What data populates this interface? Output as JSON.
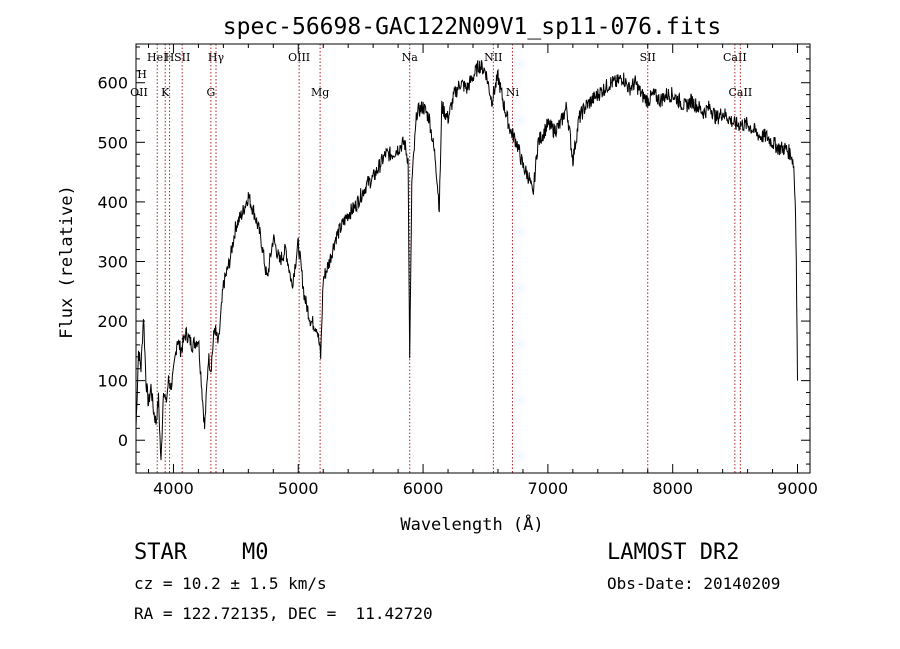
{
  "chart_data": {
    "type": "line",
    "title": "spec-56698-GAC122N09V1_sp11-076.fits",
    "xlabel": "Wavelength (Å)",
    "ylabel": "Flux (relative)",
    "xlim": [
      3700,
      9100
    ],
    "ylim": [
      -55,
      665
    ],
    "xticks": [
      4000,
      5000,
      6000,
      7000,
      8000,
      9000
    ],
    "yticks": [
      0,
      100,
      200,
      300,
      400,
      500,
      600
    ],
    "series": [
      {
        "color": "#000000",
        "x": [
          3700,
          3720,
          3740,
          3760,
          3780,
          3800,
          3820,
          3840,
          3860,
          3880,
          3900,
          3920,
          3940,
          3960,
          3980,
          4000,
          4030,
          4060,
          4100,
          4150,
          4200,
          4250,
          4280,
          4300,
          4330,
          4360,
          4400,
          4450,
          4500,
          4550,
          4600,
          4650,
          4700,
          4750,
          4800,
          4850,
          4900,
          4950,
          5000,
          5050,
          5100,
          5150,
          5180,
          5200,
          5250,
          5300,
          5350,
          5400,
          5450,
          5500,
          5550,
          5600,
          5650,
          5700,
          5750,
          5800,
          5850,
          5880,
          5893,
          5910,
          5950,
          6000,
          6050,
          6100,
          6130,
          6150,
          6200,
          6250,
          6300,
          6350,
          6400,
          6450,
          6500,
          6550,
          6600,
          6650,
          6700,
          6750,
          6800,
          6850,
          6880,
          6920,
          6950,
          7000,
          7050,
          7100,
          7150,
          7200,
          7250,
          7300,
          7350,
          7400,
          7450,
          7500,
          7550,
          7600,
          7650,
          7700,
          7750,
          7800,
          7850,
          7900,
          7950,
          8000,
          8050,
          8100,
          8150,
          8200,
          8250,
          8300,
          8350,
          8400,
          8450,
          8500,
          8550,
          8600,
          8650,
          8700,
          8750,
          8800,
          8850,
          8900,
          8950,
          8970,
          8985,
          8990,
          9000
        ],
        "y": [
          20,
          150,
          120,
          210,
          100,
          60,
          90,
          50,
          30,
          70,
          -40,
          90,
          60,
          100,
          90,
          110,
          170,
          150,
          180,
          160,
          170,
          20,
          140,
          120,
          190,
          160,
          260,
          300,
          360,
          380,
          410,
          380,
          340,
          270,
          340,
          300,
          320,
          260,
          330,
          240,
          200,
          190,
          140,
          270,
          300,
          340,
          360,
          380,
          390,
          410,
          430,
          440,
          460,
          480,
          480,
          490,
          500,
          470,
          130,
          430,
          550,
          560,
          540,
          470,
          390,
          560,
          540,
          580,
          600,
          590,
          610,
          630,
          620,
          570,
          610,
          560,
          520,
          500,
          460,
          440,
          410,
          500,
          510,
          530,
          520,
          530,
          560,
          470,
          540,
          560,
          570,
          580,
          590,
          600,
          600,
          610,
          590,
          600,
          580,
          570,
          580,
          570,
          580,
          580,
          570,
          560,
          570,
          560,
          550,
          560,
          540,
          550,
          540,
          530,
          530,
          530,
          520,
          510,
          510,
          500,
          490,
          490,
          480,
          460,
          380,
          300,
          100
        ]
      }
    ],
    "lines": [
      {
        "x": 3870,
        "top": "HeI",
        "bottom": ""
      },
      {
        "x": 3934,
        "top": "",
        "bottom": "K"
      },
      {
        "x": 3969,
        "top": "H",
        "bottom": ""
      },
      {
        "x": 4070,
        "top": "SII",
        "bottom": ""
      },
      {
        "x": 4300,
        "top": "",
        "bottom": "G"
      },
      {
        "x": 4341,
        "top": "Hγ",
        "bottom": ""
      },
      {
        "x": 5007,
        "top": "OIII",
        "bottom": ""
      },
      {
        "x": 5175,
        "top": "",
        "bottom": "Mg"
      },
      {
        "x": 5893,
        "top": "Na",
        "bottom": ""
      },
      {
        "x": 6563,
        "top": "NII",
        "bottom": ""
      },
      {
        "x": 6716,
        "top": "",
        "bottom": "Ni"
      },
      {
        "x": 7800,
        "top": "SII",
        "bottom": ""
      },
      {
        "x": 8498,
        "top": "CaII",
        "bottom": ""
      },
      {
        "x": 8542,
        "top": "",
        "bottom": "CaII"
      }
    ],
    "left_labels": {
      "top": "H",
      "bottom": "OII"
    },
    "line_color": "#b22222"
  },
  "info": {
    "class": "STAR",
    "subclass": "M0",
    "survey": "LAMOST DR2",
    "cz": "cz = 10.2 ± 1.5 km/s",
    "obs_date": "Obs-Date: 20140209",
    "radec": "RA = 122.72135, DEC =  11.42720"
  }
}
